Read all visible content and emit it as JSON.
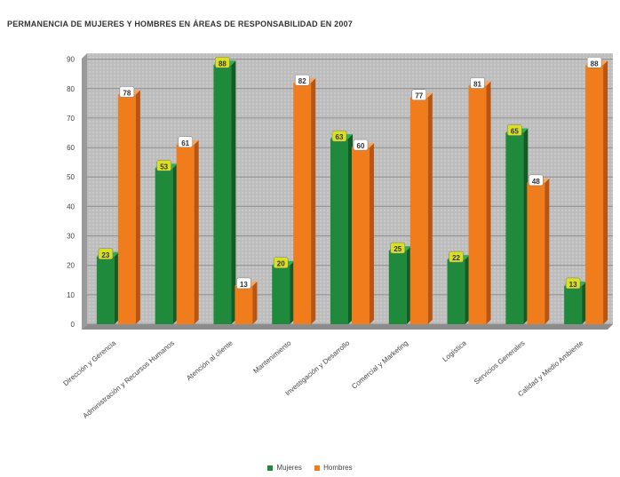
{
  "chart_data": {
    "type": "bar",
    "title": "PERMANENCIA DE MUJERES Y HOMBRES EN ÁREAS DE RESPONSABILIDAD EN 2007",
    "categories": [
      "Dirección y Gerencia",
      "Administración y Recursos Humanos",
      "Atención al cliente",
      "Mantenimiento",
      "Investigación y Desarrollo",
      "Comercial y Marketing",
      "Logística",
      "Servicios Generales",
      "Calidad y Medio Ambiente"
    ],
    "series": [
      {
        "name": "Mujeres",
        "color": "#1f8a3b",
        "labelColor": "#d9e021",
        "values": [
          23,
          53,
          88,
          20,
          63,
          25,
          22,
          65,
          13
        ]
      },
      {
        "name": "Hombres",
        "color": "#f07c1c",
        "labelColor": "#ffffff",
        "values": [
          78,
          61,
          13,
          82,
          60,
          77,
          81,
          48,
          88
        ]
      }
    ],
    "yticks": [
      0,
      10,
      20,
      30,
      40,
      50,
      60,
      70,
      80,
      90
    ],
    "ylim": [
      0,
      92
    ],
    "grid": true,
    "legend_position": "bottom"
  }
}
